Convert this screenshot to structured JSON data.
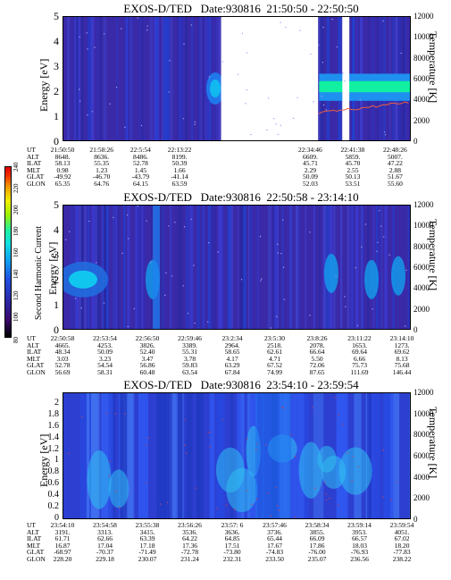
{
  "colorbar": {
    "label": "Second Harmonic Current",
    "ticks": [
      "80",
      "100",
      "120",
      "140",
      "160",
      "180",
      "200",
      "220",
      "240"
    ]
  },
  "chart_data": [
    {
      "type": "heatmap",
      "title": "EXOS-D/TED   Date:930816  21:50:50 - 22:50:50",
      "ylabel": "Energy [eV]",
      "y2label": "Temperature [K]",
      "ylim": [
        0,
        5
      ],
      "y2lim": [
        0,
        12000
      ],
      "yticks": [
        "0",
        "1",
        "2",
        "3",
        "4",
        "5"
      ],
      "y2ticks": [
        "0",
        "2000",
        "4000",
        "6000",
        "8000",
        "10000",
        "12000"
      ],
      "data_gaps": [
        [
          0.455,
          0.735
        ],
        [
          0.805,
          0.825
        ]
      ],
      "ephemeris": {
        "labels": [
          "UT",
          "ALT",
          "ILAT",
          "MLT",
          "GLAT",
          "GLON"
        ],
        "columns": [
          [
            "21:50:50",
            "8648.",
            "58.13",
            "0.98",
            "-49.92",
            "65.35"
          ],
          [
            "21:58:26",
            "8636.",
            "55.35",
            "1.23",
            "-46.70",
            "64.76"
          ],
          [
            "22:5:54",
            "8486.",
            "52.78",
            "1.45",
            "-43.79",
            "64.15"
          ],
          [
            "22:13:22",
            "8199.",
            "50.39",
            "1.66",
            "-41.14",
            "63.59"
          ],
          [
            "22:34:46",
            "6609.",
            "45.71",
            "2.29",
            "50.09",
            "52.03"
          ],
          [
            "22:41:38",
            "5859.",
            "45.70",
            "2.55",
            "50.13",
            "53.51"
          ],
          [
            "22:48:26",
            "5007.",
            "47.22",
            "2.88",
            "51.67",
            "55.60"
          ]
        ]
      }
    },
    {
      "type": "heatmap",
      "title": "EXOS-D/TED   Date:930816  22:50:58 - 23:14:10",
      "ylabel": "Energy [eV]",
      "y2label": "Temperature [K]",
      "ylim": [
        0,
        5
      ],
      "y2lim": [
        0,
        12000
      ],
      "yticks": [
        "0",
        "1",
        "2",
        "3",
        "4",
        "5"
      ],
      "y2ticks": [
        "0",
        "2000",
        "4000",
        "6000",
        "8000",
        "10000",
        "12000"
      ],
      "ephemeris": {
        "labels": [
          "UT",
          "ALT",
          "ILAT",
          "MLT",
          "GLAT",
          "GLON"
        ],
        "columns": [
          [
            "22:50:58",
            "4665.",
            "48.34",
            "3.03",
            "52.78",
            "56.69"
          ],
          [
            "22:53:54",
            "4253.",
            "50.09",
            "3.23",
            "54.54",
            "58.31"
          ],
          [
            "22:56:50",
            "3826.",
            "52.40",
            "3.47",
            "56.86",
            "60.48"
          ],
          [
            "22:59:46",
            "3389.",
            "55.31",
            "3.78",
            "59.83",
            "63.54"
          ],
          [
            "23:2:34",
            "2964.",
            "58.65",
            "4.17",
            "63.29",
            "67.84"
          ],
          [
            "23:5:30",
            "2518.",
            "62.61",
            "4.71",
            "67.52",
            "74.99"
          ],
          [
            "23:8:26",
            "2078.",
            "66.64",
            "5.50",
            "72.06",
            "87.65"
          ],
          [
            "23:11:22",
            "1653.",
            "69.64",
            "6.66",
            "75.73",
            "111.69"
          ],
          [
            "23:14:10",
            "1273.",
            "69.62",
            "8.13",
            "75.68",
            "146.44"
          ]
        ]
      }
    },
    {
      "type": "heatmap",
      "title": "EXOS-D/TED   Date:930816  23:54:10 - 23:59:54",
      "ylabel": "Energy [eV]",
      "y2label": "Temperature [K]",
      "ylim": [
        0,
        2.2
      ],
      "y2lim": [
        0,
        12000
      ],
      "yticks": [
        "0",
        "0.2",
        "0.4",
        "0.6",
        "0.8",
        "1",
        "1.2",
        "1.4",
        "1.6",
        "1.8",
        "2"
      ],
      "y2ticks": [
        "0",
        "2000",
        "4000",
        "6000",
        "8000",
        "10000",
        "12000"
      ],
      "ephemeris": {
        "labels": [
          "UT",
          "ALT",
          "ILAT",
          "MLT",
          "GLAT",
          "GLON"
        ],
        "columns": [
          [
            "23:54:10",
            "3191.",
            "61.71",
            "16.87",
            "-68.97",
            "228.20"
          ],
          [
            "23:54:58",
            "3313.",
            "62.66",
            "17.04",
            "-70.37",
            "229.18"
          ],
          [
            "23:55:38",
            "3415.",
            "63.39",
            "17.18",
            "-71.49",
            "230.07"
          ],
          [
            "23:56:26",
            "3536.",
            "64.22",
            "17.36",
            "-72.78",
            "231.24"
          ],
          [
            "23:57: 6",
            "3636.",
            "64.85",
            "17.51",
            "-73.80",
            "232.31"
          ],
          [
            "23:57:46",
            "3736.",
            "65.44",
            "17.67",
            "-74.83",
            "233.50"
          ],
          [
            "23:58:34",
            "3855.",
            "66.09",
            "17.86",
            "-76.00",
            "235.07"
          ],
          [
            "23:59:14",
            "3953.",
            "66.57",
            "18.03",
            "-76.93",
            "236.56"
          ],
          [
            "23:59:54",
            "4051.",
            "67.02",
            "18.20",
            "-77.83",
            "238.22"
          ]
        ]
      }
    }
  ]
}
